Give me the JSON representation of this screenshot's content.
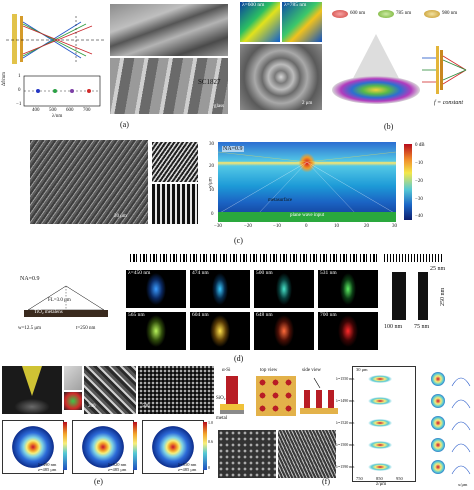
{
  "panel_labels": {
    "a": "(a)",
    "b": "(b)",
    "c": "(c)",
    "d": "(d)",
    "e": "(e)",
    "f": "(f)"
  },
  "panel_a": {
    "sample_label": "SC1827",
    "substrate_label": "glass",
    "plot_y_label": "Δf/mm",
    "plot_x_label": "λ/nm",
    "plot_y_ticks": [
      "1",
      "0",
      "−1"
    ],
    "plot_x_ticks": [
      "400",
      "500",
      "600",
      "700"
    ]
  },
  "panel_b": {
    "wavelengths": [
      "600 nm",
      "785 nm",
      "980 nm"
    ],
    "focal_text": "f = constant",
    "tile_labels": [
      "λ=600 nm",
      "λ=785 nm"
    ],
    "scale": "2 μm"
  },
  "panel_c": {
    "na": "NA=0.9",
    "metasurface": "metasurface",
    "input": "plane wave input",
    "scale": "20 μm",
    "y_label": "y/μm",
    "y_ticks": [
      "30",
      "20",
      "10",
      "0"
    ],
    "x_ticks": [
      "−30",
      "−20",
      "−10",
      "0",
      "10",
      "20",
      "30"
    ],
    "cbar_ticks": [
      "0 dB",
      "−10",
      "−20",
      "−30",
      "−40"
    ]
  },
  "panel_d": {
    "na": "NA=0.9",
    "fl": "FL=3.0 μm",
    "material": "TiO₂ metalens",
    "width": "w=12.5 μm",
    "thickness": "t=250 nm",
    "wavelength_tiles": [
      "λ=450 nm",
      "474 nm",
      "500 nm",
      "531 nm",
      "565 nm",
      "604 nm",
      "648 nm",
      "700 nm"
    ],
    "dim_top": "25 nm",
    "dim_side": "250 nm",
    "dim_bottom_left": "100 nm",
    "dim_bottom_right": "75 nm"
  },
  "panel_e": {
    "scales": [
      "200",
      "500"
    ],
    "focal_labels": [
      "λ=490 nm",
      "λ=520 nm",
      "λ=550 nm"
    ],
    "focal_sub": [
      "z=485 μm",
      "z=485 μm",
      "z=485 μm"
    ],
    "cbar_ticks": [
      "1.0",
      "0.8",
      "0.6",
      "0.4",
      "0.2",
      "0"
    ]
  },
  "panel_f": {
    "material": "α-Si",
    "sio2": "SiO₂",
    "metal": "metal",
    "top_view": "top view",
    "side_view": "side view",
    "depth_label": "30 μm",
    "wavelength_labels": [
      "λ=1550 nm",
      "λ=1490 nm",
      "λ=1520 nm",
      "λ=1500 nm",
      "λ=1590 nm"
    ],
    "x_label": "z/μm",
    "x_ticks": [
      "750",
      "850",
      "950"
    ],
    "side_axis": "x/μm"
  }
}
